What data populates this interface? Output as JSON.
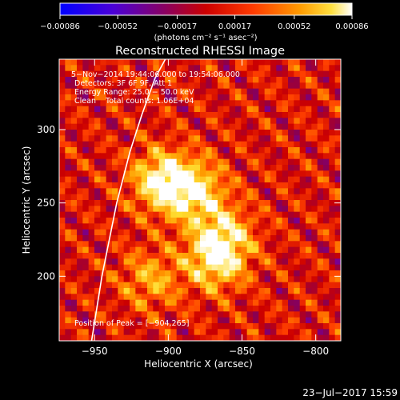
{
  "chart_data": {
    "type": "heatmap",
    "title": "Reconstructed RHESSI Image",
    "xlabel": "Heliocentric X (arcsec)",
    "ylabel": "Heliocentric Y (arcsec)",
    "xlim": [
      -974,
      -783
    ],
    "ylim": [
      156,
      348
    ],
    "x_ticks": [
      -950,
      -900,
      -850,
      -800
    ],
    "x_tick_labels": [
      "−950",
      "−900",
      "−850",
      "−800"
    ],
    "y_ticks": [
      200,
      250,
      300
    ],
    "y_tick_labels": [
      "200",
      "250",
      "300"
    ],
    "colorbar": {
      "range": [
        -0.00086,
        0.00086
      ],
      "ticks": [
        -0.00086,
        -0.00052,
        -0.00017,
        0.00017,
        0.00052,
        0.00086
      ],
      "tick_labels": [
        "−0.00086",
        "−0.00052",
        "−0.00017",
        "0.00017",
        "0.00052",
        "0.00086"
      ],
      "label": "(photons cm⁻² s⁻¹ asec⁻²)",
      "colors": [
        "#0000ff",
        "#6a00c8",
        "#8a0050",
        "#cc0000",
        "#ff4000",
        "#ff9a00",
        "#ffdd30",
        "#ffffff"
      ]
    },
    "annotations": [
      "5−Nov−2014 19:44:06.000 to 19:54:06.000",
      "Detectors: 3F 6F 9F, Att 1",
      "Energy Range: 25.0 − 50.0 keV",
      "Clean    Total counts: 1.06E+04"
    ],
    "peak_label": "Position of Peak = [−904,265]",
    "peak": [
      -904,
      265
    ],
    "limb_curve": {
      "x": [
        -952,
        -945,
        -935,
        -926,
        -918,
        -909,
        -902
      ],
      "y": [
        156,
        200,
        250,
        285,
        310,
        335,
        348
      ]
    },
    "sources": [
      {
        "x": -904,
        "y": 265,
        "amp": 1.0
      },
      {
        "x": -882,
        "y": 258,
        "amp": 0.85
      },
      {
        "x": -862,
        "y": 228,
        "amp": 0.7
      },
      {
        "x": -868,
        "y": 210,
        "amp": 0.8
      },
      {
        "x": -912,
        "y": 198,
        "amp": 0.55
      }
    ]
  },
  "footer": {
    "date_stamp": "23−Jul−2017 15:59"
  }
}
